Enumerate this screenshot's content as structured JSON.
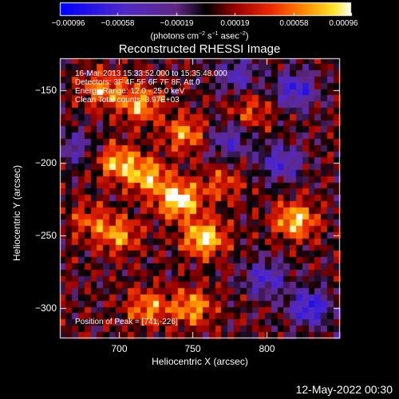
{
  "chart_data": {
    "type": "heatmap",
    "title": "Reconstructed RHESSI Image",
    "xlabel": "Heliocentric X (arcsec)",
    "ylabel": "Heliocentric Y (arcsec)",
    "xlim": [
      660,
      850
    ],
    "ylim": [
      -321,
      -128
    ],
    "x_ticks": [
      700,
      750,
      800
    ],
    "y_ticks": [
      -150,
      -200,
      -250,
      -300
    ],
    "x_tick_labels": [
      "700",
      "750",
      "800"
    ],
    "y_tick_labels": [
      "−150",
      "−200",
      "−250",
      "−300"
    ],
    "colorbar": {
      "min": -0.00096,
      "max": 0.00096,
      "ticks": [
        -0.00096,
        -0.00058,
        -0.00019,
        0.00019,
        0.00058,
        0.00096
      ],
      "tick_labels": [
        "−0.00096",
        "−0.00058",
        "−0.00019",
        "0.00019",
        "0.00058",
        "0.00096"
      ],
      "units_text": "(photons cm",
      "units_exp1": "−2",
      "units_mid1": " s",
      "units_exp2": "−1",
      "units_mid2": " asec",
      "units_exp3": "−2",
      "units_end": ")"
    },
    "hotspots": [
      {
        "x": 741,
        "y": -226,
        "value": 0.00096
      },
      {
        "x": 758,
        "y": -252,
        "value": 0.0009
      },
      {
        "x": 820,
        "y": -240,
        "value": 0.0008
      },
      {
        "x": 720,
        "y": -210,
        "value": 0.0007
      },
      {
        "x": 700,
        "y": -200,
        "value": 0.0007
      },
      {
        "x": 690,
        "y": -150,
        "value": 0.0006
      },
      {
        "x": 715,
        "y": -160,
        "value": 0.00065
      },
      {
        "x": 745,
        "y": -180,
        "value": 0.0006
      },
      {
        "x": 700,
        "y": -250,
        "value": 0.0006
      },
      {
        "x": 720,
        "y": -300,
        "value": 0.0006
      },
      {
        "x": 750,
        "y": -300,
        "value": 0.00065
      },
      {
        "x": 790,
        "y": -165,
        "value": 0.0004
      },
      {
        "x": 680,
        "y": -240,
        "value": 0.0004
      },
      {
        "x": 770,
        "y": -215,
        "value": 0.0004
      }
    ],
    "coldspots": [
      {
        "x": 820,
        "y": -150,
        "value": -0.0007
      },
      {
        "x": 780,
        "y": -140,
        "value": -0.0005
      },
      {
        "x": 830,
        "y": -300,
        "value": -0.0008
      },
      {
        "x": 800,
        "y": -280,
        "value": -0.0006
      },
      {
        "x": 670,
        "y": -190,
        "value": -0.0004
      },
      {
        "x": 810,
        "y": -200,
        "value": -0.0006
      },
      {
        "x": 775,
        "y": -185,
        "value": -0.0005
      }
    ]
  },
  "info": {
    "line1": "16-Mar-2013 15:33:52.000 to 15:35:48.000",
    "line2": "Detectors: 3F 4F 5F 6F 7F 8F, Att 0",
    "line3": "Energy Range: 12.0 - 25.0 keV",
    "line4": "Clean     Total counts: 3.97E+03"
  },
  "peak_text": "Position of Peak = [741,-226]",
  "footer_date": "12-May-2022 00:30"
}
